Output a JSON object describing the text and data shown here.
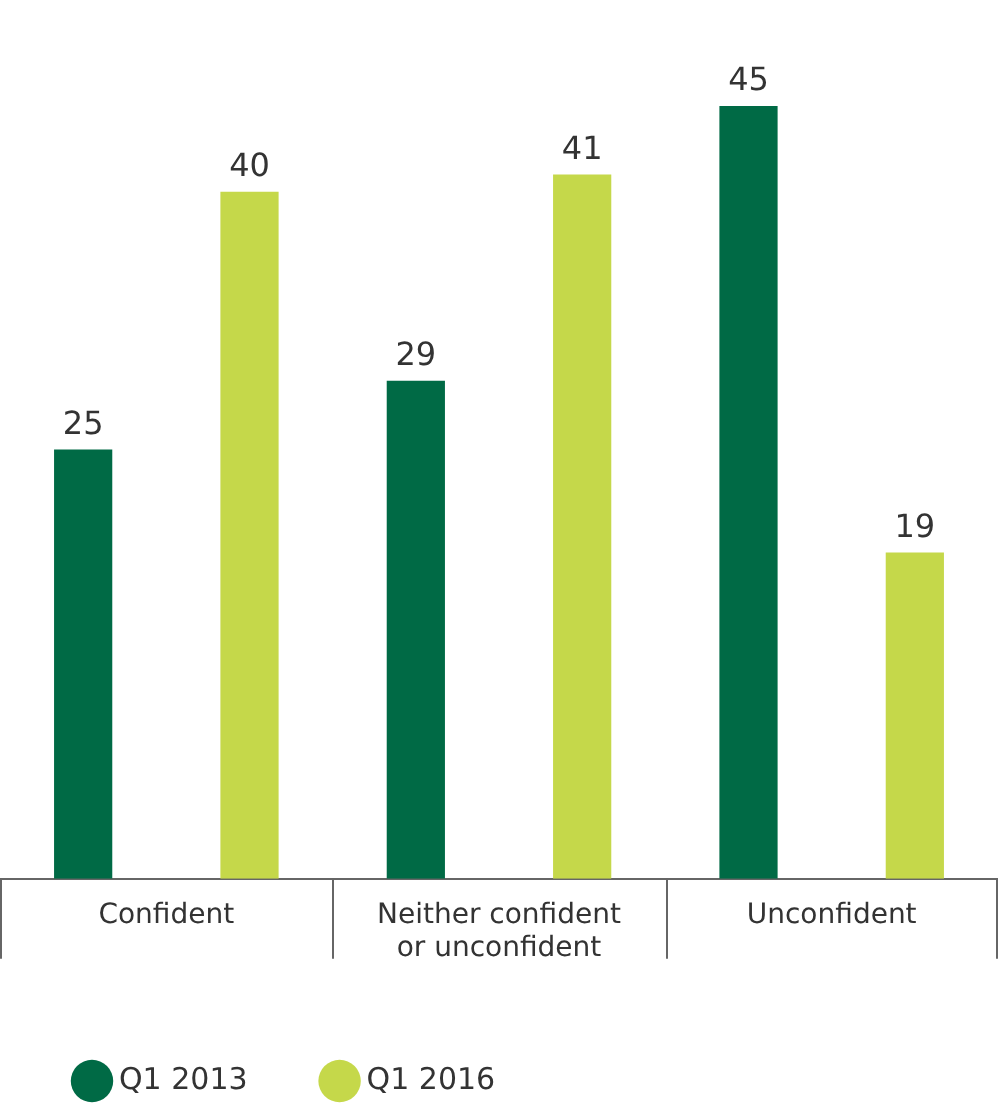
{
  "chart_data": {
    "type": "bar",
    "categories": [
      "Confident",
      "Neither confident or unconfident",
      "Unconfident"
    ],
    "series": [
      {
        "name": "Q1 2013",
        "color": "#006a45",
        "values": [
          25,
          29,
          45
        ]
      },
      {
        "name": "Q1 2016",
        "color": "#c5d84a",
        "values": [
          40,
          41,
          19
        ]
      }
    ],
    "data_labels": true,
    "grid": false,
    "legend": "bottom left",
    "marker": "circle"
  }
}
